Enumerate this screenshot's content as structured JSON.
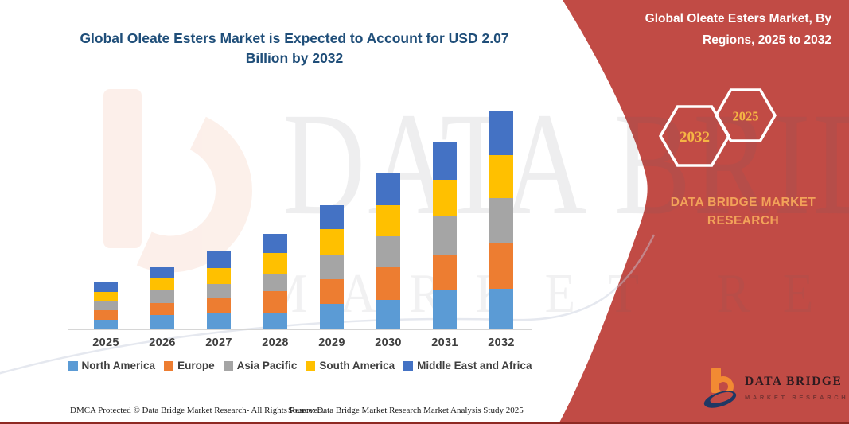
{
  "panel": {
    "title": "Global Oleate Esters Market, By Regions, 2025 to 2032",
    "hexagon_back_label": "2032",
    "hexagon_front_label": "2025",
    "brand_text": "DATA BRIDGE MARKET RESEARCH",
    "logo_name": "DATA BRIDGE",
    "logo_tagline": "MARKET RESEARCH",
    "bg_color": "#C14B45",
    "brand_text_color": "#F2A259",
    "hex_label_color": "#F5B544"
  },
  "watermark": {
    "line1": "DATA BRIDGE",
    "line2": "MARKET RESEARCH"
  },
  "footer": {
    "left": "DMCA Protected © Data Bridge Market Research-  All Rights Reserved.",
    "right": "Source: Data Bridge Market Research  Market Analysis Study 2025"
  },
  "chart_data": {
    "type": "bar",
    "stacked": true,
    "title": "Global Oleate Esters Market is Expected to Account for USD 2.07 Billion by 2032",
    "xlabel": "",
    "ylabel": "",
    "units": "USD billion (estimated from title; y-axis unlabeled)",
    "grid": false,
    "legend_position": "bottom",
    "categories": [
      "2025",
      "2026",
      "2027",
      "2028",
      "2029",
      "2030",
      "2031",
      "2032"
    ],
    "series": [
      {
        "name": "North America",
        "color": "#5B9BD5",
        "values": [
          0.098,
          0.143,
          0.158,
          0.165,
          0.248,
          0.285,
          0.375,
          0.39
        ]
      },
      {
        "name": "Europe",
        "color": "#ED7D31",
        "values": [
          0.09,
          0.113,
          0.143,
          0.203,
          0.233,
          0.308,
          0.338,
          0.428
        ]
      },
      {
        "name": "Asia Pacific",
        "color": "#A5A5A5",
        "values": [
          0.09,
          0.12,
          0.135,
          0.165,
          0.233,
          0.293,
          0.368,
          0.428
        ]
      },
      {
        "name": "South America",
        "color": "#FFC000",
        "values": [
          0.083,
          0.113,
          0.15,
          0.195,
          0.24,
          0.293,
          0.338,
          0.405
        ]
      },
      {
        "name": "Middle East and Africa",
        "color": "#4472C4",
        "values": [
          0.09,
          0.105,
          0.165,
          0.18,
          0.225,
          0.3,
          0.36,
          0.42
        ]
      }
    ],
    "totals_estimated": [
      0.45,
      0.59,
      0.75,
      0.91,
      1.18,
      1.48,
      1.78,
      2.07
    ]
  }
}
